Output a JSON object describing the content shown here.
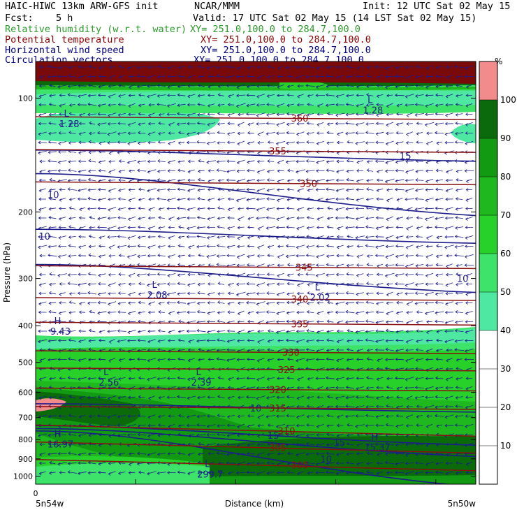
{
  "header": {
    "model": "HAIC-HIWC 13km ARW-GFS init",
    "org": "NCAR/MMM",
    "init": "Init: 12 UTC Sat 02 May 15",
    "fcst_label": "Fcst:",
    "fcst_value": "5 h",
    "valid": "Valid: 17 UTC Sat 02 May 15 (14 LST Sat 02 May 15)",
    "fields": [
      {
        "name": "Relative humidity (w.r.t. water)",
        "xy": "XY= 251.0,100.0 to 284.7,100.0",
        "color": "#2a9a2a"
      },
      {
        "name": "Potential temperature",
        "xy": "XY= 251.0,100.0 to 284.7,100.0",
        "color": "#8b0000"
      },
      {
        "name": "Horizontal wind speed",
        "xy": "XY= 251.0,100.0 to 284.7,100.0",
        "color": "#000080"
      },
      {
        "name": "Circulation vectors",
        "xy": "XY= 251.0,100.0 to 284.7,100.0",
        "color": "#000080"
      }
    ]
  },
  "chart_data": {
    "type": "cross-section",
    "ylabel": "Pressure (hPa)",
    "xlabel": "Distance (km)",
    "y_scale": "log",
    "ylim": [
      1050,
      80
    ],
    "y_ticks": [
      100,
      200,
      300,
      400,
      500,
      600,
      700,
      800,
      900,
      1000
    ],
    "x_start_label": "0",
    "x_left_label": "5n54w",
    "x_right_label": "5n50w",
    "colorbar": {
      "unit": "%",
      "levels": [
        10,
        20,
        30,
        40,
        50,
        60,
        70,
        80,
        90,
        100
      ],
      "colors": {
        "50": "#4fe8a2",
        "60": "#3ee36a",
        "70": "#28d02a",
        "80": "#1fb81f",
        "90": "#139a13",
        "100": "#0b6b0b",
        "above": "#f28b8b"
      }
    },
    "theta_contours": [
      {
        "value": 300,
        "label": "300",
        "p": 935
      },
      {
        "value": 305,
        "label": "305",
        "p": 840
      },
      {
        "value": 310,
        "label": "310",
        "p": 758
      },
      {
        "value": 315,
        "label": "315",
        "p": 660
      },
      {
        "value": 320,
        "label": "320",
        "p": 590
      },
      {
        "value": 325,
        "label": "325",
        "p": 522
      },
      {
        "value": 330,
        "label": "330",
        "p": 470
      },
      {
        "value": 335,
        "label": "335",
        "p": 395
      },
      {
        "value": 340,
        "label": "340",
        "p": 340
      },
      {
        "value": 345,
        "label": "345",
        "p": 280
      },
      {
        "value": 350,
        "label": "350",
        "p": 168
      },
      {
        "value": 355,
        "label": "355",
        "p": 138
      },
      {
        "value": 360,
        "label": "360",
        "p": 113
      }
    ],
    "wind_contours": [
      {
        "value": 10,
        "label": "10",
        "p": 660
      },
      {
        "value": 15,
        "label": "15",
        "p": 780
      },
      {
        "value": 15,
        "label": "15",
        "p": 815
      },
      {
        "value": 10,
        "label": "10",
        "p": 900
      },
      {
        "value": 10,
        "label": "10",
        "p": 180
      },
      {
        "value": 10,
        "label": "10",
        "p": 232
      },
      {
        "value": 10,
        "label": "10",
        "p": 300
      },
      {
        "value": 15,
        "label": "15",
        "p": 142
      }
    ],
    "extrema": [
      {
        "type": "L",
        "value": "1.28",
        "dist_frac": 0.07,
        "p": 113
      },
      {
        "type": "L",
        "value": "1.28",
        "dist_frac": 0.76,
        "p": 104
      },
      {
        "type": "L",
        "value": "2.08",
        "dist_frac": 0.27,
        "p": 320
      },
      {
        "type": "L",
        "value": "2.02",
        "dist_frac": 0.64,
        "p": 325
      },
      {
        "type": "H",
        "value": "9.43",
        "dist_frac": 0.05,
        "p": 400
      },
      {
        "type": "L",
        "value": "2.56",
        "dist_frac": 0.16,
        "p": 545
      },
      {
        "type": "L",
        "value": "2.39",
        "dist_frac": 0.37,
        "p": 545
      },
      {
        "type": "H",
        "value": "16.97",
        "dist_frac": 0.05,
        "p": 795
      },
      {
        "type": "H",
        "value": "15.37",
        "dist_frac": 0.77,
        "p": 810
      },
      {
        "type": "L",
        "value": "299.7",
        "dist_frac": 0.39,
        "p": 955
      }
    ]
  }
}
